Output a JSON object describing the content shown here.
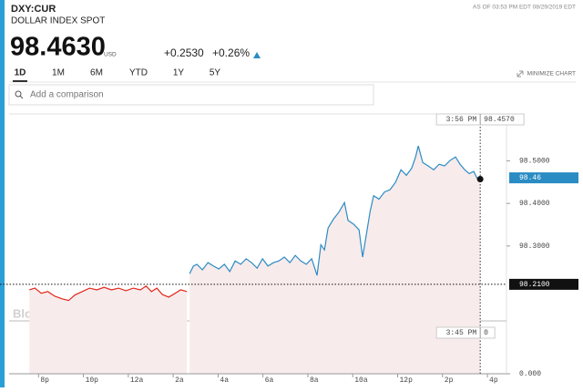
{
  "header": {
    "ticker": "DXY:CUR",
    "name": "DOLLAR INDEX SPOT",
    "as_of": "AS OF 03:53 PM EDT 08/29/2019 EDT",
    "price": "98.4630",
    "currency": "USD",
    "change": "+0.2530",
    "change_pct": "+0.26%"
  },
  "tabs": [
    "1D",
    "1M",
    "6M",
    "YTD",
    "1Y",
    "5Y"
  ],
  "minimize": "MINIMIZE CHART",
  "search_placeholder": "Add a comparison",
  "watermark": "BloombergMarkets",
  "chart_data": {
    "type": "line",
    "xlim": [
      -0.5,
      20.85
    ],
    "ylim": [
      98.0,
      98.61
    ],
    "xticks": [
      {
        "value": 0,
        "label": "8p"
      },
      {
        "value": 2,
        "label": "10p"
      },
      {
        "value": 4,
        "label": "12a"
      },
      {
        "value": 6,
        "label": "2a"
      },
      {
        "value": 8,
        "label": "4a"
      },
      {
        "value": 10,
        "label": "6a"
      },
      {
        "value": 12,
        "label": "8a"
      },
      {
        "value": 14,
        "label": "10a"
      },
      {
        "value": 16,
        "label": "12p"
      },
      {
        "value": 18,
        "label": "2p"
      },
      {
        "value": 20,
        "label": "4p"
      }
    ],
    "yticks": [
      {
        "value": 98.3,
        "label": "98.3000"
      },
      {
        "value": 98.4,
        "label": "98.4000"
      },
      {
        "value": 98.5,
        "label": "98.5000"
      }
    ],
    "reference": {
      "value": 98.21,
      "label": "98.2100"
    },
    "last_price": 98.46,
    "fill": "#f8ebeb",
    "crosshair": {
      "time": "3:56 PM",
      "price": {
        "value": 98.457,
        "label": "98.4570"
      }
    },
    "volume": {
      "time": "3:45 PM",
      "value": 0,
      "axis_label": {
        "value": 0,
        "label": "0.000"
      }
    },
    "series": [
      {
        "color": "#e0281c",
        "x": [
          -0.41,
          -0.16,
          0.12,
          0.41,
          0.73,
          1.05,
          1.34,
          1.62,
          1.95,
          2.27,
          2.6,
          2.92,
          3.25,
          3.57,
          3.89,
          4.22,
          4.54,
          4.79,
          5.03,
          5.27,
          5.52,
          5.8,
          6.09,
          6.33,
          6.61
        ],
        "values": [
          98.197,
          98.201,
          98.189,
          98.193,
          98.182,
          98.176,
          98.172,
          98.185,
          98.193,
          98.201,
          98.197,
          98.203,
          98.197,
          98.201,
          98.195,
          98.201,
          98.197,
          98.206,
          98.193,
          98.201,
          98.186,
          98.18,
          98.189,
          98.197,
          98.193
        ]
      },
      {
        "color": "#2b8cc4",
        "x": [
          6.73,
          6.9,
          7.06,
          7.3,
          7.55,
          7.79,
          8.03,
          8.28,
          8.52,
          8.76,
          9.01,
          9.25,
          9.49,
          9.74,
          9.98,
          10.22,
          10.47,
          10.71,
          10.95,
          11.2,
          11.44,
          11.68,
          11.93,
          12.17,
          12.41,
          12.58,
          12.74,
          12.9,
          13.14,
          13.39,
          13.63,
          13.79,
          14.04,
          14.28,
          14.44,
          14.6,
          14.77,
          14.93,
          15.17,
          15.42,
          15.66,
          15.9,
          16.15,
          16.39,
          16.63,
          16.8,
          16.92,
          17.12,
          17.36,
          17.61,
          17.85,
          18.09,
          18.34,
          18.58,
          18.78,
          18.99,
          19.19,
          19.39,
          19.55,
          19.68
        ],
        "values": [
          98.235,
          98.253,
          98.257,
          98.244,
          98.261,
          98.253,
          98.246,
          98.257,
          98.24,
          98.265,
          98.257,
          98.27,
          98.261,
          98.248,
          98.27,
          98.253,
          98.261,
          98.265,
          98.274,
          98.261,
          98.278,
          98.265,
          98.257,
          98.27,
          98.231,
          98.303,
          98.291,
          98.342,
          98.363,
          98.38,
          98.402,
          98.36,
          98.351,
          98.338,
          98.274,
          98.325,
          98.38,
          98.418,
          98.41,
          98.427,
          98.432,
          98.449,
          98.479,
          98.466,
          98.483,
          98.509,
          98.535,
          98.496,
          98.488,
          98.479,
          98.492,
          98.488,
          98.501,
          98.509,
          98.492,
          98.479,
          98.47,
          98.475,
          98.458,
          98.457
        ]
      }
    ]
  }
}
